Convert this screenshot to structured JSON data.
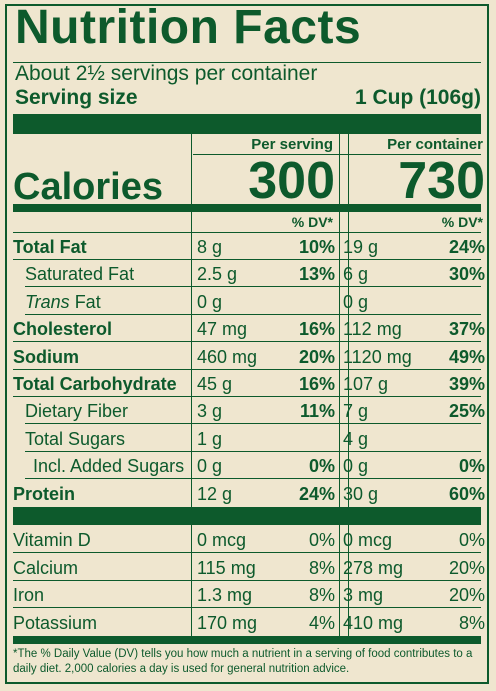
{
  "title": "Nutrition Facts",
  "servings_text": "About 2½ servings per container",
  "serving_size_label": "Serving size",
  "serving_size_value": "1 Cup (106g)",
  "per_serving_label": "Per serving",
  "per_container_label": "Per container",
  "calories_label": "Calories",
  "calories_per_serving": "300",
  "calories_per_container": "730",
  "dv_header": "% DV*",
  "nutrients": [
    {
      "name": "Total Fat",
      "style": "bold",
      "s_amt": "8 g",
      "s_dv": "10%",
      "c_amt": "19 g",
      "c_dv": "24%"
    },
    {
      "name": "Saturated Fat",
      "style": "indent",
      "s_amt": "2.5 g",
      "s_dv": "13%",
      "c_amt": "6 g",
      "c_dv": "30%"
    },
    {
      "name_italic": "Trans",
      "name_rest": " Fat",
      "style": "indent",
      "s_amt": "0 g",
      "s_dv": "",
      "c_amt": "0 g",
      "c_dv": ""
    },
    {
      "name": "Cholesterol",
      "style": "bold",
      "s_amt": "47 mg",
      "s_dv": "16%",
      "c_amt": "112 mg",
      "c_dv": "37%"
    },
    {
      "name": "Sodium",
      "style": "bold",
      "s_amt": "460 mg",
      "s_dv": "20%",
      "c_amt": "1120 mg",
      "c_dv": "49%"
    },
    {
      "name": "Total Carbohydrate",
      "style": "bold",
      "s_amt": "45 g",
      "s_dv": "16%",
      "c_amt": "107 g",
      "c_dv": "39%"
    },
    {
      "name": "Dietary Fiber",
      "style": "indent",
      "s_amt": "3 g",
      "s_dv": "11%",
      "c_amt": "7 g",
      "c_dv": "25%"
    },
    {
      "name": "Total Sugars",
      "style": "indent",
      "s_amt": "1 g",
      "s_dv": "",
      "c_amt": "4 g",
      "c_dv": ""
    },
    {
      "name": "Incl. Added Sugars",
      "style": "indent2",
      "s_amt": "0 g",
      "s_dv": "0%",
      "c_amt": "0 g",
      "c_dv": "0%"
    },
    {
      "name": "Protein",
      "style": "bold",
      "s_amt": "12 g",
      "s_dv": "24%",
      "c_amt": "30 g",
      "c_dv": "60%"
    }
  ],
  "vitamins": [
    {
      "name": "Vitamin D",
      "s_amt": "0 mcg",
      "s_dv": "0%",
      "c_amt": "0 mcg",
      "c_dv": "0%"
    },
    {
      "name": "Calcium",
      "s_amt": "115 mg",
      "s_dv": "8%",
      "c_amt": "278 mg",
      "c_dv": "20%"
    },
    {
      "name": "Iron",
      "s_amt": "1.3 mg",
      "s_dv": "8%",
      "c_amt": "3 mg",
      "c_dv": "20%"
    },
    {
      "name": "Potassium",
      "s_amt": "170 mg",
      "s_dv": "4%",
      "c_amt": "410 mg",
      "c_dv": "8%"
    }
  ],
  "footnote": "*The % Daily Value (DV) tells you how much a nutrient in a serving of food contributes to a daily diet. 2,000 calories a day is used for general nutrition advice.",
  "colors": {
    "ink": "#0d5a2c",
    "paper": "#efe6cf"
  }
}
